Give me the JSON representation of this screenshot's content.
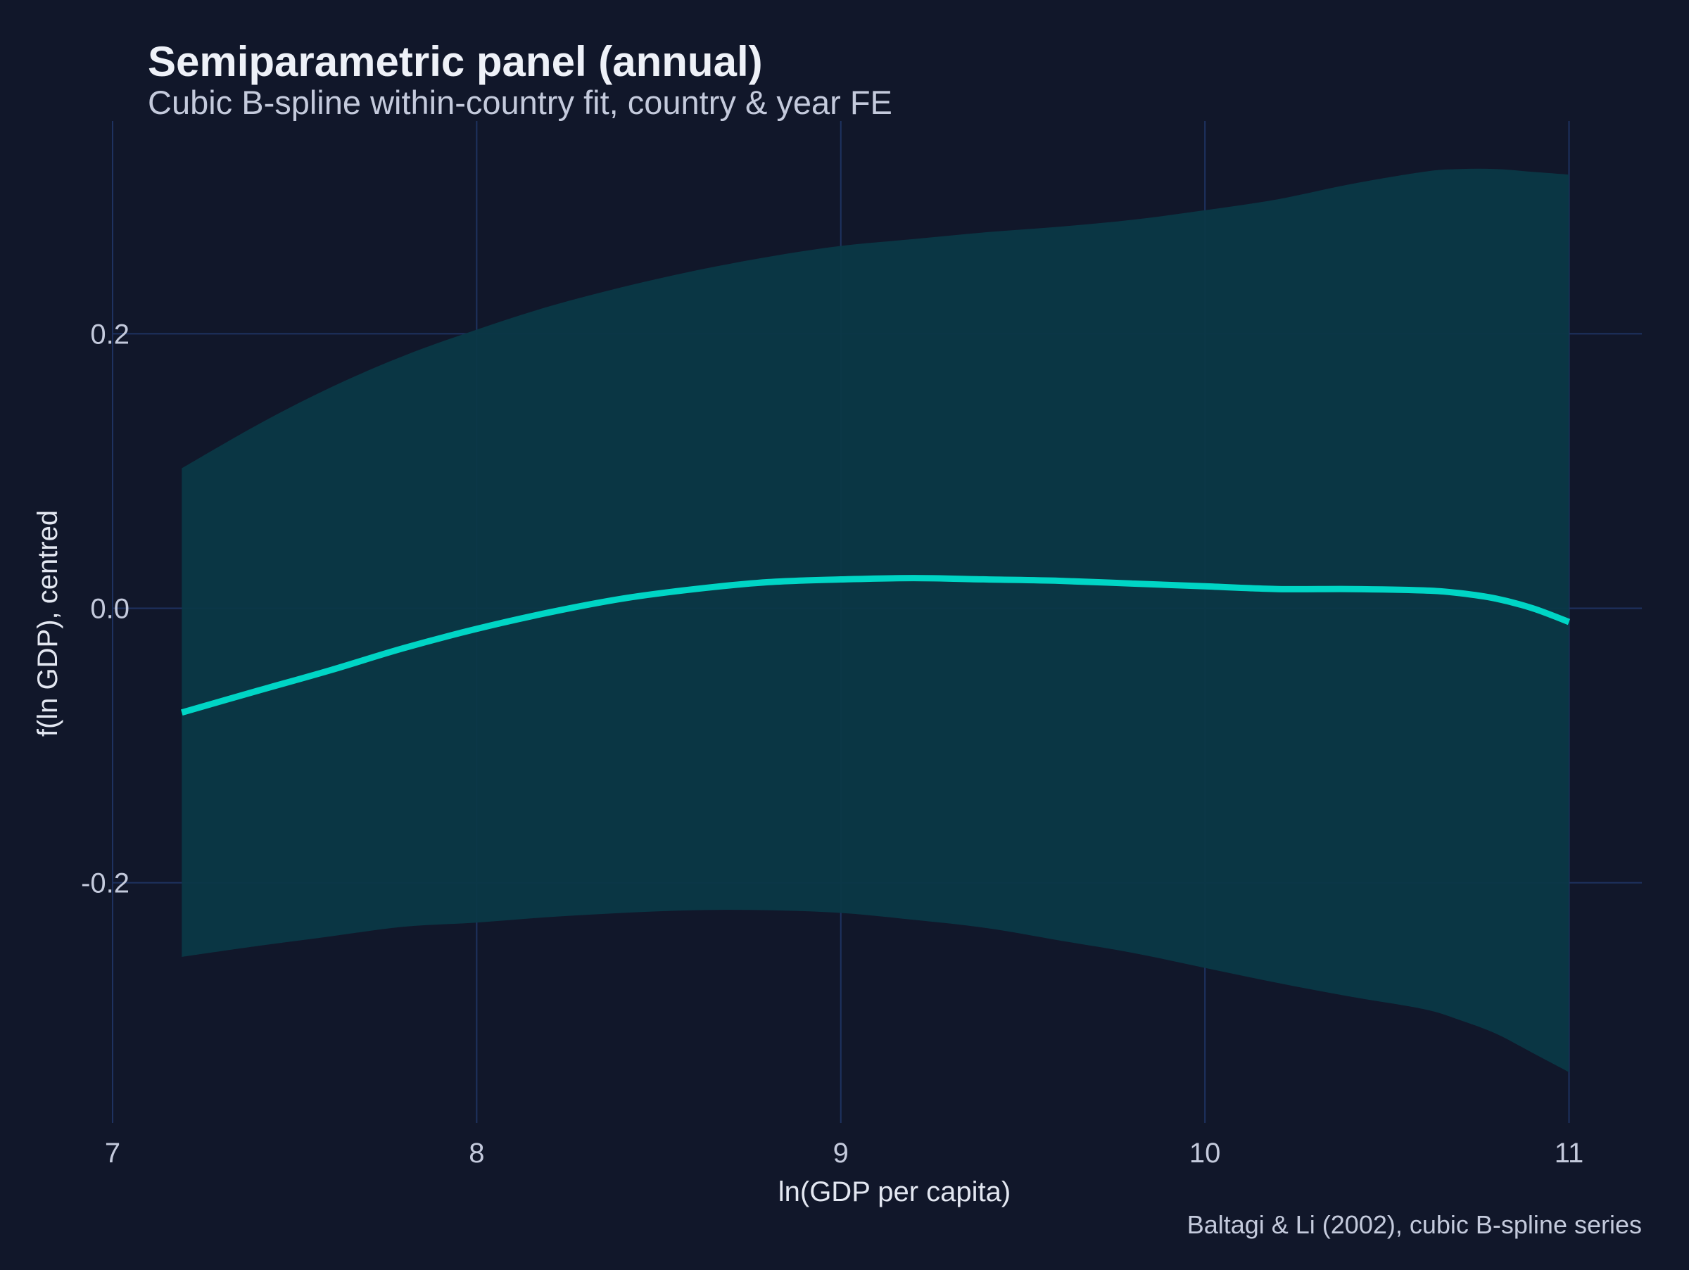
{
  "colors": {
    "background": "#11172a",
    "grid": "#1e3260",
    "band": "#0b3846",
    "line": "#00d5c5",
    "title": "#eef1f8",
    "subtitle": "#c4cadc",
    "axis_text": "#c4cadc",
    "axis_title": "#e3e7f1",
    "caption": "#c4cadc"
  },
  "chart_data": {
    "type": "line",
    "title": "Semiparametric panel (annual)",
    "subtitle": "Cubic B-spline within-country fit, country & year FE",
    "xlabel": "ln(GDP per capita)",
    "ylabel": "f(ln GDP), centred",
    "caption": "Baltagi & Li (2002), cubic B-spline series",
    "xlim": [
      7,
      11.2
    ],
    "ylim": [
      -0.375,
      0.355
    ],
    "xticks": [
      7,
      8,
      9,
      10,
      11
    ],
    "xtick_labels": [
      "7",
      "8",
      "9",
      "10",
      "11"
    ],
    "yticks": [
      -0.2,
      0,
      0.2
    ],
    "ytick_labels": [
      "-0.2",
      "0.0",
      "0.2"
    ],
    "grid": true,
    "legend": "none",
    "series": [
      {
        "x": [
          7.19,
          7.4,
          7.6,
          7.8,
          8.0,
          8.2,
          8.4,
          8.6,
          8.8,
          9.0,
          9.2,
          9.4,
          9.6,
          9.8,
          10.0,
          10.2,
          10.4,
          10.6,
          10.7,
          10.8,
          10.9,
          11.0
        ],
        "y": [
          -0.076,
          -0.06,
          -0.045,
          -0.029,
          -0.015,
          -0.003,
          0.007,
          0.014,
          0.019,
          0.021,
          0.022,
          0.021,
          0.02,
          0.018,
          0.016,
          0.014,
          0.014,
          0.013,
          0.011,
          0.007,
          0.0,
          -0.01
        ],
        "lower": [
          -0.254,
          -0.246,
          -0.239,
          -0.232,
          -0.229,
          -0.225,
          -0.222,
          -0.22,
          -0.22,
          -0.222,
          -0.227,
          -0.233,
          -0.242,
          -0.251,
          -0.262,
          -0.273,
          -0.283,
          -0.292,
          -0.3,
          -0.31,
          -0.324,
          -0.338
        ],
        "upper": [
          0.102,
          0.134,
          0.161,
          0.184,
          0.203,
          0.22,
          0.234,
          0.246,
          0.256,
          0.264,
          0.269,
          0.274,
          0.278,
          0.283,
          0.29,
          0.298,
          0.309,
          0.318,
          0.32,
          0.32,
          0.318,
          0.316
        ]
      }
    ]
  }
}
